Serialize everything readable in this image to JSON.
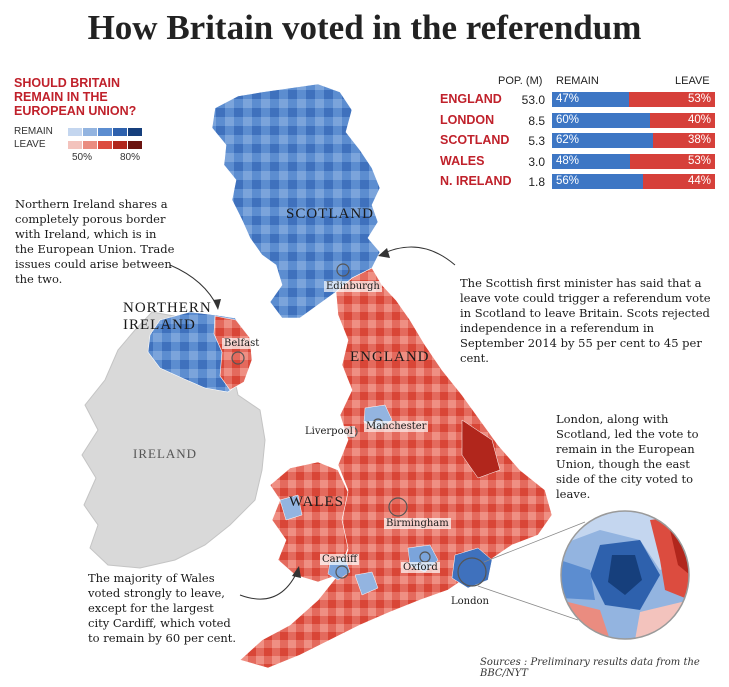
{
  "title": "How Britain voted in the referendum",
  "legend": {
    "question": "SHOULD BRITAIN REMAIN IN THE EUROPEAN UNION?",
    "remain_label": "REMAIN",
    "leave_label": "LEAVE",
    "tick_low": "50%",
    "tick_high": "80%",
    "remain_colors": [
      "#c4d6ef",
      "#93b4e0",
      "#5c8dd0",
      "#2e61ad",
      "#163f7c"
    ],
    "leave_colors": [
      "#f3c3bd",
      "#ea8c80",
      "#dc4c3f",
      "#b1261c",
      "#6b1410"
    ]
  },
  "table": {
    "headers": {
      "pop": "POP. (M)",
      "remain": "REMAIN",
      "leave": "LEAVE"
    },
    "rows": [
      {
        "name": "ENGLAND",
        "pop": "53.0",
        "remain": "47%",
        "leave": "53%",
        "remain_frac": 0.47
      },
      {
        "name": "LONDON",
        "pop": "8.5",
        "remain": "60%",
        "leave": "40%",
        "remain_frac": 0.6
      },
      {
        "name": "SCOTLAND",
        "pop": "5.3",
        "remain": "62%",
        "leave": "38%",
        "remain_frac": 0.62
      },
      {
        "name": "WALES",
        "pop": "3.0",
        "remain": "48%",
        "leave": "53%",
        "remain_frac": 0.48
      },
      {
        "name": "N. IRELAND",
        "pop": "1.8",
        "remain": "56%",
        "leave": "44%",
        "remain_frac": 0.56
      }
    ]
  },
  "notes": {
    "ni": "Northern Ireland shares a completely porous border with Ireland, which is in the European Union. Trade issues could arise between the two.",
    "scotland": "The Scottish first minister has said that a leave vote could trigger a referendum vote in Scotland to leave Britain. Scots rejected independence in a referendum in September 2014 by 55 per cent to 45 per cent.",
    "london": "London, along with Scotland, led the vote to remain in the European Union, though the east side of the city voted to leave.",
    "wales": "The majority of Wales voted strongly to leave, except for the largest city Cardiff, which voted to remain by 60 per cent."
  },
  "regions": {
    "scotland": "SCOTLAND",
    "northern_ireland_1": "NORTHERN",
    "northern_ireland_2": "IRELAND",
    "england": "ENGLAND",
    "wales": "WALES",
    "ireland": "IRELAND"
  },
  "cities": {
    "edinburgh": "Edinburgh",
    "belfast": "Belfast",
    "liverpool": "Liverpool",
    "manchester": "Manchester",
    "birmingham": "Birmingham",
    "cardiff": "Cardiff",
    "oxford": "Oxford",
    "london": "London"
  },
  "source": "Sources : Preliminary results data from the BBC/NYT"
}
